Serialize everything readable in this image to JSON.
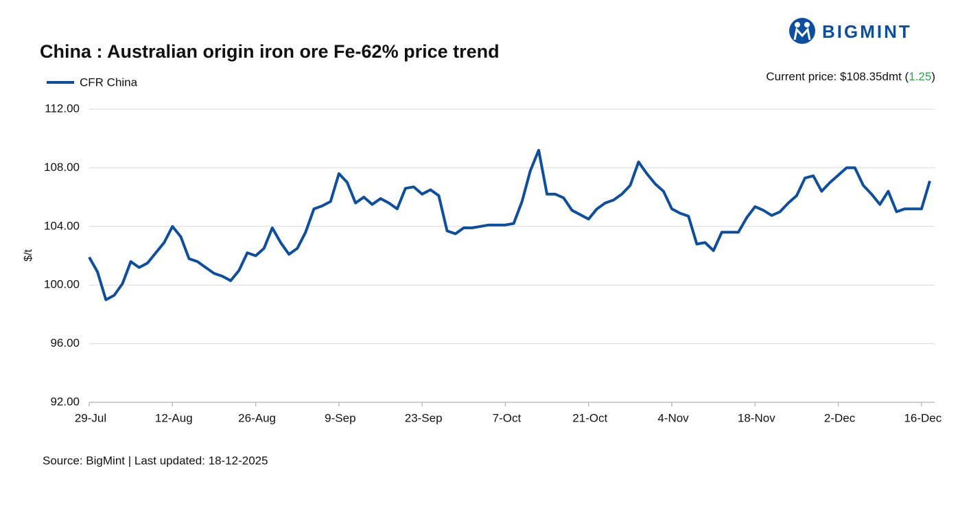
{
  "brand": "BIGMINT",
  "current_price": {
    "prefix": "Current price: $108.35dmt (",
    "change": "1.25",
    "suffix": ")"
  },
  "footer": "Source: BigMint | Last updated: 18-12-2025",
  "chart_data": {
    "type": "line",
    "title": "China : Australian origin iron ore Fe-62% price trend",
    "y_label": "$/t",
    "grid": true,
    "legend": "top-left",
    "x": [
      "29-Jul",
      "30-Jul",
      "31-Jul",
      "1-Aug",
      "4-Aug",
      "5-Aug",
      "6-Aug",
      "7-Aug",
      "8-Aug",
      "11-Aug",
      "12-Aug",
      "13-Aug",
      "14-Aug",
      "15-Aug",
      "18-Aug",
      "19-Aug",
      "20-Aug",
      "21-Aug",
      "22-Aug",
      "25-Aug",
      "26-Aug",
      "27-Aug",
      "28-Aug",
      "29-Aug",
      "1-Sep",
      "2-Sep",
      "3-Sep",
      "4-Sep",
      "5-Sep",
      "8-Sep",
      "9-Sep",
      "10-Sep",
      "11-Sep",
      "12-Sep",
      "15-Sep",
      "16-Sep",
      "17-Sep",
      "18-Sep",
      "19-Sep",
      "22-Sep",
      "23-Sep",
      "24-Sep",
      "25-Sep",
      "26-Sep",
      "29-Sep",
      "30-Sep",
      "1-Oct",
      "2-Oct",
      "3-Oct",
      "6-Oct",
      "7-Oct",
      "8-Oct",
      "9-Oct",
      "10-Oct",
      "13-Oct",
      "14-Oct",
      "15-Oct",
      "16-Oct",
      "17-Oct",
      "20-Oct",
      "21-Oct",
      "22-Oct",
      "23-Oct",
      "24-Oct",
      "27-Oct",
      "28-Oct",
      "29-Oct",
      "30-Oct",
      "31-Oct",
      "3-Nov",
      "4-Nov",
      "5-Nov",
      "6-Nov",
      "7-Nov",
      "10-Nov",
      "11-Nov",
      "12-Nov",
      "13-Nov",
      "14-Nov",
      "17-Nov",
      "18-Nov",
      "19-Nov",
      "20-Nov",
      "21-Nov",
      "24-Nov",
      "25-Nov",
      "26-Nov",
      "27-Nov",
      "28-Nov",
      "1-Dec",
      "2-Dec",
      "3-Dec",
      "4-Dec",
      "5-Dec",
      "8-Dec",
      "9-Dec",
      "10-Dec",
      "11-Dec",
      "12-Dec",
      "15-Dec",
      "16-Dec",
      "17-Dec"
    ],
    "xticks": [
      "29-Jul",
      "12-Aug",
      "26-Aug",
      "9-Sep",
      "23-Sep",
      "7-Oct",
      "21-Oct",
      "4-Nov",
      "18-Nov",
      "2-Dec",
      "16-Dec"
    ],
    "series": [
      {
        "name": "CFR China",
        "color": "#0b4ea2",
        "values": [
          101.9,
          100.9,
          99.0,
          99.3,
          100.1,
          101.6,
          101.2,
          101.5,
          102.2,
          102.9,
          104.0,
          103.3,
          101.8,
          101.6,
          101.2,
          100.8,
          100.6,
          100.3,
          101.0,
          102.2,
          102.0,
          102.5,
          103.9,
          102.9,
          102.1,
          102.5,
          103.6,
          105.2,
          105.4,
          105.7,
          107.6,
          107.0,
          105.6,
          106.0,
          105.5,
          105.9,
          105.6,
          105.2,
          106.6,
          106.7,
          106.2,
          106.5,
          106.1,
          103.7,
          103.5,
          103.9,
          103.9,
          104.0,
          104.1,
          104.1,
          104.1,
          104.2,
          105.7,
          107.8,
          109.2,
          106.2,
          106.2,
          105.95,
          105.1,
          104.8,
          104.5,
          105.2,
          105.6,
          105.8,
          106.2,
          106.8,
          108.4,
          107.6,
          106.9,
          106.4,
          105.2,
          104.9,
          104.7,
          102.8,
          102.9,
          102.35,
          103.6,
          103.6,
          103.6,
          104.6,
          105.35,
          105.1,
          104.75,
          105.0,
          105.6,
          106.1,
          107.3,
          107.45,
          106.4,
          107.0,
          107.5,
          108.0,
          108.0,
          106.8,
          106.2,
          105.5,
          106.4,
          105.0,
          105.2,
          105.2,
          105.2,
          107.1
        ]
      }
    ],
    "ylim": [
      92,
      112
    ],
    "yticks": [
      {
        "value": 92,
        "label": "92.00"
      },
      {
        "value": 96,
        "label": "96.00"
      },
      {
        "value": 100,
        "label": "100.00"
      },
      {
        "value": 104,
        "label": "104.00"
      },
      {
        "value": 108,
        "label": "108.00"
      },
      {
        "value": 112,
        "label": "112.00"
      }
    ]
  }
}
